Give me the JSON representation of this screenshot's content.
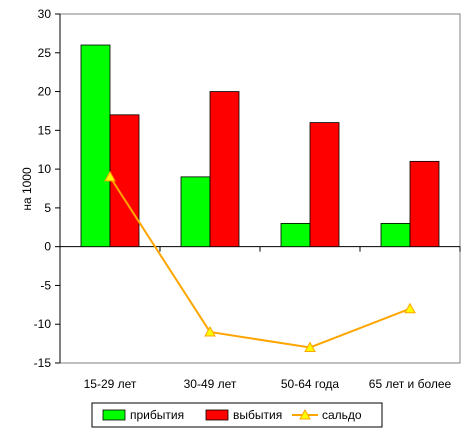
{
  "chart_data": {
    "type": "bar",
    "categories": [
      "15-29 лет",
      "30-49 лет",
      "50-64 года",
      "65 лет и более"
    ],
    "series": [
      {
        "name": "прибытия",
        "type": "bar",
        "color": "#00FF00",
        "values": [
          26,
          9,
          3,
          3
        ]
      },
      {
        "name": "выбытия",
        "type": "bar",
        "color": "#FF0000",
        "values": [
          17,
          20,
          16,
          11
        ]
      },
      {
        "name": "сальдо",
        "type": "line",
        "color": "#FFA500",
        "marker_color": "#FFFF00",
        "values": [
          9,
          -11,
          -13,
          -8
        ]
      }
    ],
    "ylabel": "на 1000",
    "ylim": [
      -15,
      30
    ],
    "yticks": [
      "30",
      "25",
      "20",
      "15",
      "10",
      "5",
      "0",
      "-5",
      "-10",
      "-15"
    ],
    "legend": {
      "position": "bottom",
      "bordered": true
    },
    "grid": false
  }
}
